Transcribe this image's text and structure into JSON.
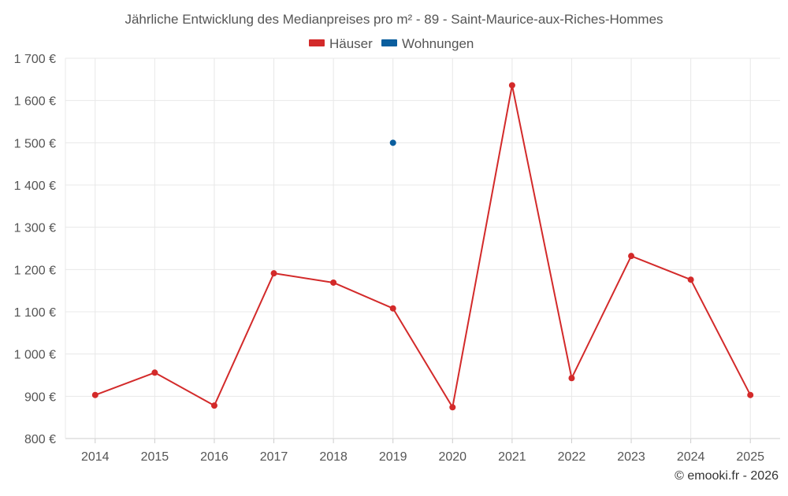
{
  "chart_data": {
    "type": "line",
    "title": "Jährliche Entwicklung des Medianpreises pro m² - 89 - Saint-Maurice-aux-Riches-Hommes",
    "categories": [
      "2014",
      "2015",
      "2016",
      "2017",
      "2018",
      "2019",
      "2020",
      "2021",
      "2022",
      "2023",
      "2024",
      "2025"
    ],
    "series": [
      {
        "name": "Häuser",
        "color": "#d32a2a",
        "values": [
          903,
          956,
          878,
          1191,
          1169,
          1108,
          874,
          1636,
          943,
          1232,
          1176,
          903
        ]
      },
      {
        "name": "Wohnungen",
        "color": "#0a5e9e",
        "values": [
          null,
          null,
          null,
          null,
          null,
          1500,
          null,
          null,
          null,
          null,
          null,
          null
        ]
      }
    ],
    "ylim": [
      800,
      1700
    ],
    "yticks": [
      800,
      900,
      1000,
      1100,
      1200,
      1300,
      1400,
      1500,
      1600,
      1700
    ],
    "ytick_labels": [
      "800 €",
      "900 €",
      "1 000 €",
      "1 100 €",
      "1 200 €",
      "1 300 €",
      "1 400 €",
      "1 500 €",
      "1 600 €",
      "1 700 €"
    ],
    "xlabel": "",
    "ylabel": "",
    "grid": true,
    "legend_position": "top-center"
  },
  "credit": "© emooki.fr - 2026"
}
